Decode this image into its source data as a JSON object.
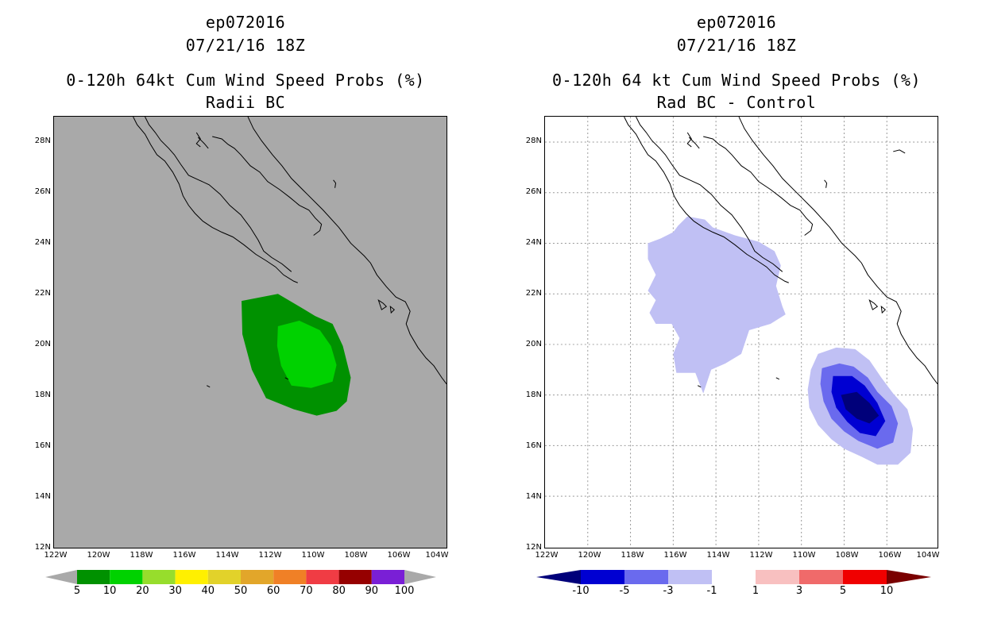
{
  "left_panel": {
    "storm_id": "ep072016",
    "datetime": "07/21/16 18Z",
    "product": "0-120h 64kt Cum Wind Speed Probs (%)",
    "subtitle": "Radii BC",
    "background_color": "#a9a9a9",
    "colorbar": {
      "labels": [
        "5",
        "10",
        "20",
        "30",
        "40",
        "50",
        "60",
        "70",
        "80",
        "90",
        "100"
      ],
      "colors": [
        "#009100",
        "#00d200",
        "#97dd2c",
        "#fff000",
        "#e2d22a",
        "#e2a62a",
        "#f08026",
        "#f03c44",
        "#960000",
        "#7a1fd6"
      ],
      "end_color": "#a9a9a9"
    }
  },
  "right_panel": {
    "storm_id": "ep072016",
    "datetime": "07/21/16 18Z",
    "product": "0-120h 64 kt Cum Wind Speed Probs (%)",
    "subtitle": "Rad BC - Control",
    "colorbar": {
      "labels": [
        "-10",
        "-5",
        "-3",
        "-1",
        "1",
        "3",
        "5",
        "10"
      ],
      "colors": [
        "#0000d2",
        "#6a6aee",
        "#c0c0f4",
        "#ffffff",
        "#f8c0c0",
        "#f06a6a",
        "#f00000"
      ],
      "low_color": "#00007a",
      "high_color": "#7a0000"
    }
  },
  "axes": {
    "lat_ticks": [
      "28N",
      "26N",
      "24N",
      "22N",
      "20N",
      "18N",
      "16N",
      "14N",
      "12N"
    ],
    "lon_ticks": [
      "122W",
      "120W",
      "118W",
      "116W",
      "114W",
      "112W",
      "110W",
      "108W",
      "106W",
      "104W"
    ]
  }
}
